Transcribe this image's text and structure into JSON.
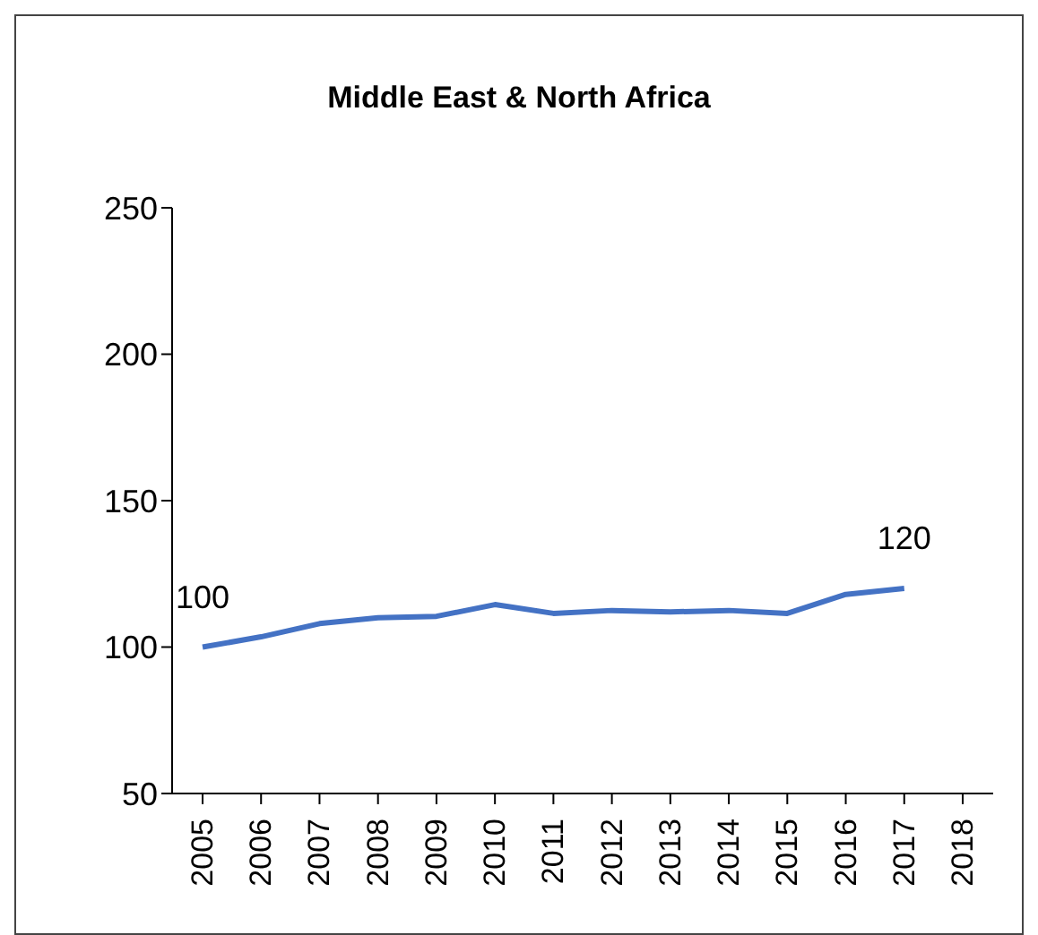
{
  "chart_data": {
    "type": "line",
    "title": "Middle East & North Africa",
    "categories": [
      "2005",
      "2006",
      "2007",
      "2008",
      "2009",
      "2010",
      "2011",
      "2012",
      "2013",
      "2014",
      "2015",
      "2016",
      "2017",
      "2018"
    ],
    "series": [
      {
        "color": "#4472c4",
        "values": [
          100,
          103.5,
          108,
          110,
          110.5,
          114.5,
          111.5,
          112.5,
          112,
          112.5,
          111.5,
          118,
          120,
          null
        ],
        "value_labels": [
          "100",
          null,
          null,
          null,
          null,
          null,
          null,
          null,
          null,
          null,
          null,
          null,
          "120",
          null
        ]
      }
    ],
    "ylim": [
      50,
      250
    ],
    "yticks": [
      50,
      100,
      150,
      200,
      250
    ],
    "grid": false,
    "legend": false,
    "marker": "none",
    "line_style": "solid"
  }
}
